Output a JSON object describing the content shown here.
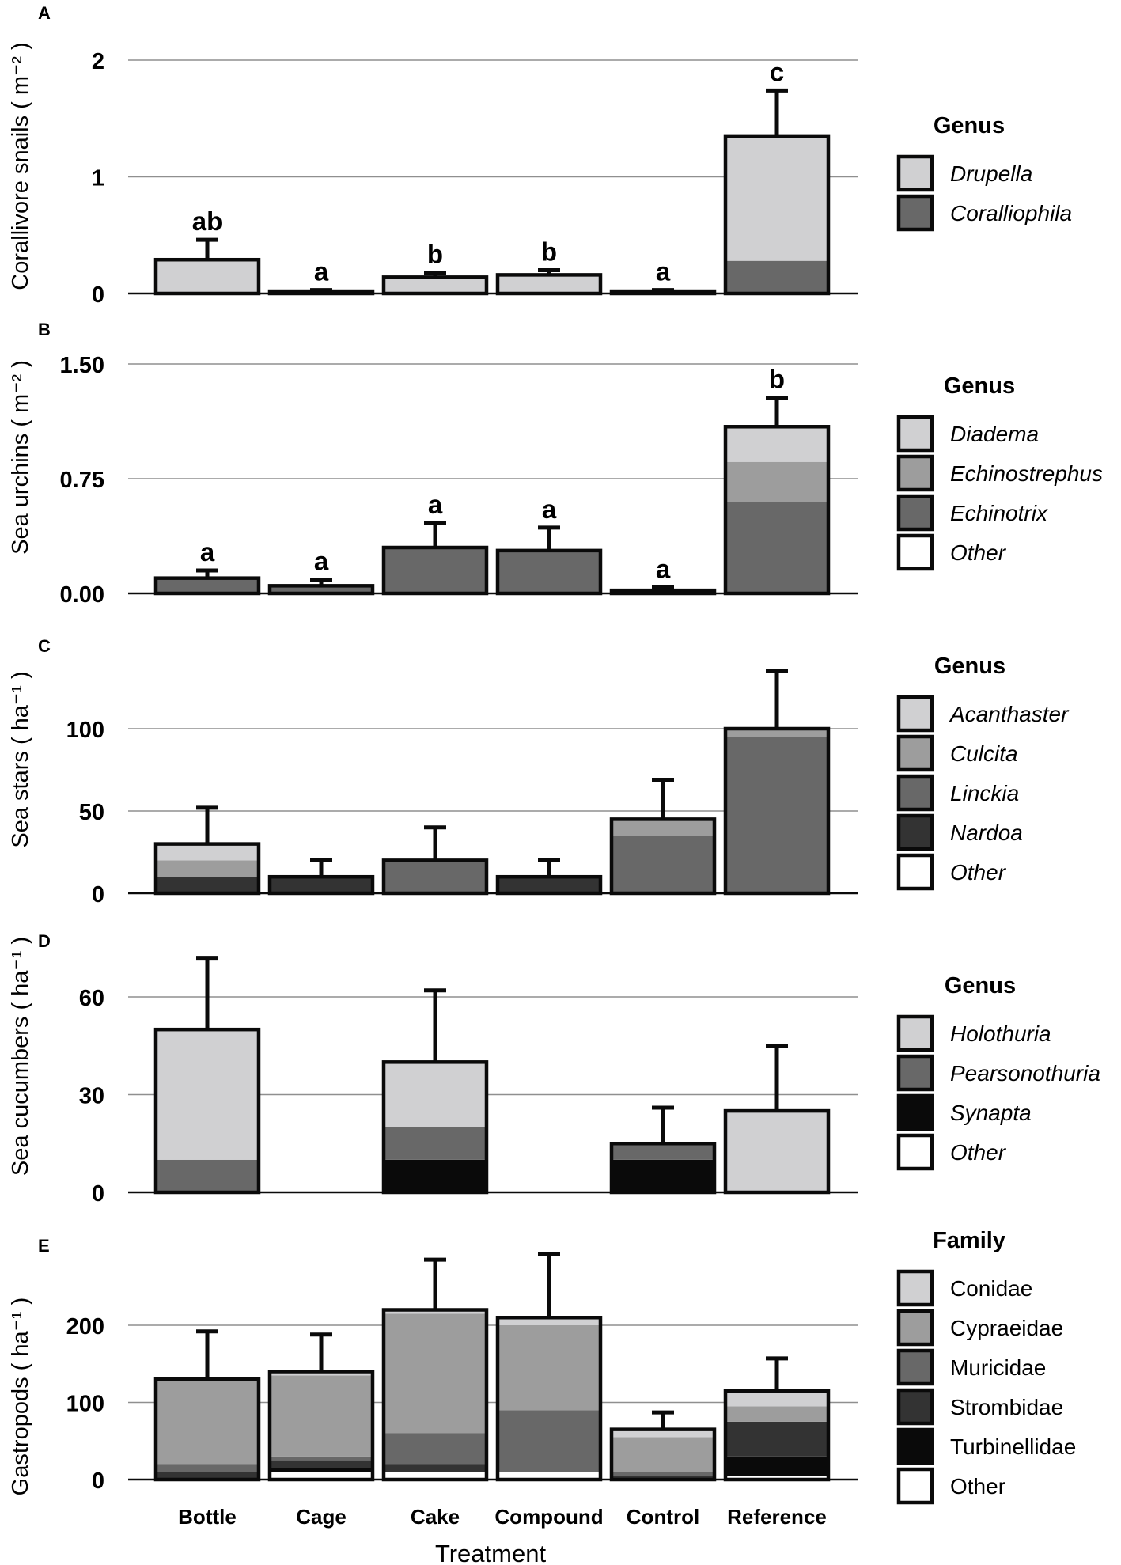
{
  "figure": {
    "x_axis_title": "Treatment",
    "categories": [
      "Bottle",
      "Cage",
      "Cake",
      "Compound",
      "Control",
      "Reference"
    ]
  },
  "chart_data": [
    {
      "type": "bar",
      "stacked": true,
      "panel": "A",
      "ylabel": "Corallivore snails ( m⁻² )",
      "ylim": [
        0,
        2
      ],
      "yticks": [
        0,
        1,
        2
      ],
      "ytick_labels": [
        "0",
        "1",
        "2"
      ],
      "legend_title": "Genus",
      "legend_italic": true,
      "categories": [
        "Bottle",
        "Cage",
        "Cake",
        "Compound",
        "Control",
        "Reference"
      ],
      "series": [
        {
          "name": "Drupella",
          "color": "#d0d0d2",
          "values": [
            0.29,
            0.02,
            0.14,
            0.16,
            0.02,
            1.07
          ]
        },
        {
          "name": "Coralliophila",
          "color": "#686868",
          "values": [
            0,
            0,
            0,
            0,
            0,
            0.28
          ]
        }
      ],
      "errors": [
        0.17,
        0.01,
        0.04,
        0.04,
        0.01,
        0.39
      ],
      "letters": [
        "ab",
        "a",
        "b",
        "b",
        "a",
        "c"
      ]
    },
    {
      "type": "bar",
      "stacked": true,
      "panel": "B",
      "ylabel": "Sea urchins ( m⁻² )",
      "ylim": [
        0,
        1.5
      ],
      "yticks": [
        0,
        0.75,
        1.5
      ],
      "ytick_labels": [
        "0.00",
        "0.75",
        "1.50"
      ],
      "legend_title": "Genus",
      "legend_italic": true,
      "categories": [
        "Bottle",
        "Cage",
        "Cake",
        "Compound",
        "Control",
        "Reference"
      ],
      "series": [
        {
          "name": "Diadema",
          "color": "#d0d0d2",
          "values": [
            0,
            0,
            0.01,
            0,
            0,
            0.23
          ]
        },
        {
          "name": "Echinostrephus",
          "color": "#9d9d9d",
          "values": [
            0,
            0,
            0,
            0,
            0,
            0.26
          ]
        },
        {
          "name": "Echinotrix",
          "color": "#686868",
          "values": [
            0.1,
            0.05,
            0.29,
            0.28,
            0.02,
            0.59
          ]
        },
        {
          "name": "Other",
          "color": "#ffffff",
          "values": [
            0,
            0,
            0,
            0,
            0,
            0.01
          ]
        }
      ],
      "errors": [
        0.05,
        0.04,
        0.16,
        0.15,
        0.02,
        0.19
      ],
      "letters": [
        "a",
        "a",
        "a",
        "a",
        "a",
        "b"
      ]
    },
    {
      "type": "bar",
      "stacked": true,
      "panel": "C",
      "ylabel": "Sea stars ( ha⁻¹ )",
      "ylim": [
        0,
        125
      ],
      "yticks": [
        0,
        50,
        100
      ],
      "ytick_labels": [
        "0",
        "50",
        "100"
      ],
      "legend_title": "Genus",
      "legend_italic": true,
      "categories": [
        "Bottle",
        "Cage",
        "Cake",
        "Compound",
        "Control",
        "Reference"
      ],
      "series": [
        {
          "name": "Acanthaster",
          "color": "#d0d0d2",
          "values": [
            10,
            0,
            0,
            0,
            0,
            0
          ]
        },
        {
          "name": "Culcita",
          "color": "#9d9d9d",
          "values": [
            10,
            0,
            0,
            0,
            10,
            5
          ]
        },
        {
          "name": "Linckia",
          "color": "#686868",
          "values": [
            0,
            0,
            20,
            0,
            35,
            95
          ]
        },
        {
          "name": "Nardoa",
          "color": "#333333",
          "values": [
            10,
            10,
            0,
            10,
            0,
            0
          ]
        },
        {
          "name": "Other",
          "color": "#ffffff",
          "values": [
            0,
            0,
            0,
            0,
            0,
            0
          ]
        }
      ],
      "errors": [
        22,
        10,
        20,
        10,
        24,
        35
      ],
      "letters": []
    },
    {
      "type": "bar",
      "stacked": true,
      "panel": "D",
      "ylabel": "Sea cucumbers ( ha⁻¹ )",
      "ylim": [
        0,
        75
      ],
      "yticks": [
        0,
        30,
        60
      ],
      "ytick_labels": [
        "0",
        "30",
        "60"
      ],
      "legend_title": "Genus",
      "legend_italic": true,
      "categories": [
        "Bottle",
        "Cage",
        "Cake",
        "Compound",
        "Control",
        "Reference"
      ],
      "series": [
        {
          "name": "Holothuria",
          "color": "#d0d0d2",
          "values": [
            40,
            0,
            20,
            0,
            0,
            25
          ]
        },
        {
          "name": "Pearsonothuria",
          "color": "#686868",
          "values": [
            10,
            0,
            10,
            0,
            5,
            0
          ]
        },
        {
          "name": "Synapta",
          "color": "#0a0a0a",
          "values": [
            0,
            0,
            10,
            0,
            10,
            0
          ]
        },
        {
          "name": "Other",
          "color": "#ffffff",
          "values": [
            0,
            0,
            0,
            0,
            0,
            0
          ]
        }
      ],
      "errors": [
        22,
        0,
        22,
        0,
        11,
        20
      ],
      "letters": []
    },
    {
      "type": "bar",
      "stacked": true,
      "panel": "E",
      "ylabel": "Gastropods ( ha⁻¹ )",
      "ylim": [
        0,
        260
      ],
      "yticks": [
        0,
        100,
        200
      ],
      "ytick_labels": [
        "0",
        "100",
        "200"
      ],
      "legend_title": "Family",
      "legend_italic": false,
      "categories": [
        "Bottle",
        "Cage",
        "Cake",
        "Compound",
        "Control",
        "Reference"
      ],
      "series": [
        {
          "name": "Conidae",
          "color": "#d0d0d2",
          "values": [
            0,
            5,
            5,
            10,
            10,
            20
          ]
        },
        {
          "name": "Cypraeidae",
          "color": "#9d9d9d",
          "values": [
            110,
            105,
            155,
            110,
            45,
            20
          ]
        },
        {
          "name": "Muricidae",
          "color": "#686868",
          "values": [
            10,
            5,
            40,
            80,
            5,
            0
          ]
        },
        {
          "name": "Strombidae",
          "color": "#333333",
          "values": [
            10,
            10,
            10,
            0,
            5,
            45
          ]
        },
        {
          "name": "Turbinellidae",
          "color": "#0a0a0a",
          "values": [
            0,
            5,
            0,
            0,
            0,
            25
          ]
        },
        {
          "name": "Other",
          "color": "#ffffff",
          "values": [
            0,
            10,
            10,
            10,
            0,
            5
          ]
        }
      ],
      "errors": [
        62,
        48,
        65,
        82,
        22,
        42
      ],
      "letters": []
    }
  ]
}
